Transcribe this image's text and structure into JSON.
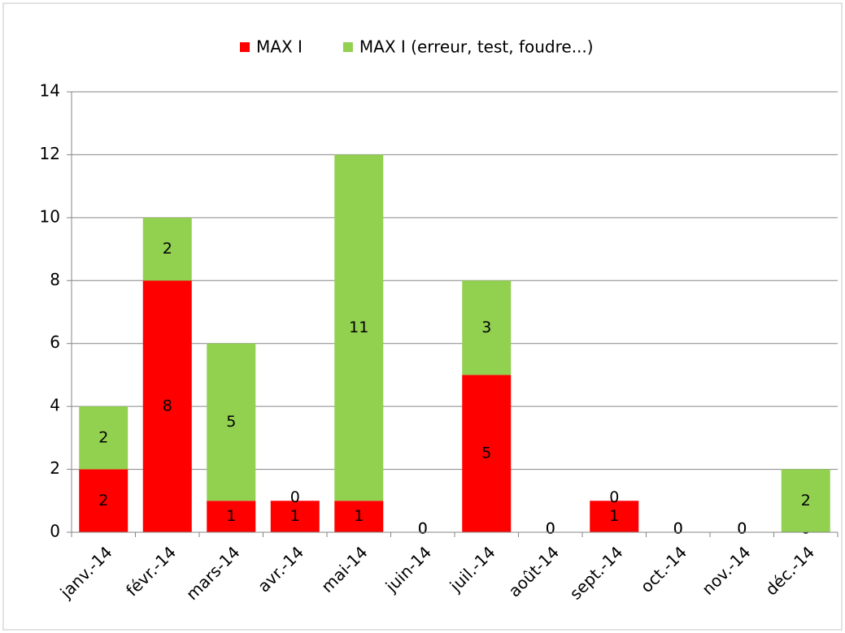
{
  "chart_data": {
    "type": "stacked_bar",
    "categories": [
      "janv.-14",
      "févr.-14",
      "mars-14",
      "avr.-14",
      "mai-14",
      "juin-14",
      "juil.-14",
      "août-14",
      "sept.-14",
      "oct.-14",
      "nov.-14",
      "déc.-14"
    ],
    "series": [
      {
        "name": "MAX I",
        "color": "#ff0000",
        "values": [
          2,
          8,
          1,
          1,
          1,
          0,
          5,
          0,
          1,
          0,
          0,
          0
        ]
      },
      {
        "name": "MAX I (erreur, test, foudre...)",
        "color": "#92d050",
        "values": [
          2,
          2,
          5,
          0,
          11,
          0,
          3,
          0,
          0,
          0,
          0,
          2
        ]
      }
    ],
    "ylim": [
      0,
      14
    ],
    "yticks": [
      0,
      2,
      4,
      6,
      8,
      10,
      12,
      14
    ],
    "grid": true,
    "legend": "top"
  }
}
